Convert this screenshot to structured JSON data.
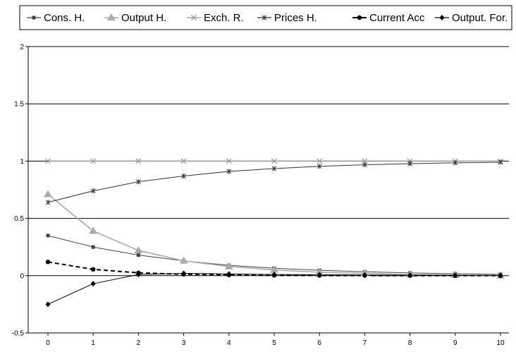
{
  "chart_data": {
    "type": "line",
    "title": "",
    "xlabel": "",
    "ylabel": "",
    "x": [
      0,
      1,
      2,
      3,
      4,
      5,
      6,
      7,
      8,
      9,
      10
    ],
    "xticks": [
      "0",
      "1",
      "2",
      "3",
      "4",
      "5",
      "6",
      "7",
      "8",
      "9",
      "10"
    ],
    "yticks": [
      "-0.5",
      "0",
      "0.5",
      "1",
      "1.5",
      "2"
    ],
    "ylim": [
      -0.5,
      2
    ],
    "grid": "horizontal",
    "legend_position": "top",
    "series": [
      {
        "name": "Cons. H.",
        "color": "#444444",
        "marker": "square",
        "dash": "solid",
        "values": [
          0.35,
          0.25,
          0.18,
          0.13,
          0.09,
          0.065,
          0.047,
          0.034,
          0.024,
          0.017,
          0.012
        ]
      },
      {
        "name": "Output H.",
        "color": "#aaaaaa",
        "marker": "triangle",
        "dash": "solid",
        "values": [
          0.71,
          0.39,
          0.22,
          0.13,
          0.08,
          0.05,
          0.03,
          0.02,
          0.01,
          0.005,
          0.0
        ]
      },
      {
        "name": "Exch. R.",
        "color": "#999999",
        "marker": "x",
        "dash": "solid",
        "values": [
          1,
          1,
          1,
          1,
          1,
          1,
          1,
          1,
          1,
          1,
          1
        ]
      },
      {
        "name": "Prices H.",
        "color": "#333333",
        "marker": "star",
        "dash": "solid",
        "values": [
          0.64,
          0.74,
          0.82,
          0.87,
          0.91,
          0.935,
          0.955,
          0.968,
          0.978,
          0.985,
          0.99
        ]
      },
      {
        "name": "Current Acc",
        "color": "#000000",
        "marker": "circle",
        "dash": "dashed",
        "values": [
          0.12,
          0.055,
          0.025,
          0.012,
          0.006,
          0.003,
          0.0015,
          0.0008,
          0.0004,
          0.0002,
          0.0001
        ]
      },
      {
        "name": "Output. For.",
        "color": "#000000",
        "marker": "diamond",
        "dash": "solid",
        "values": [
          -0.25,
          -0.07,
          0.01,
          0.02,
          0.015,
          0.01,
          0.008,
          0.006,
          0.004,
          0.003,
          0.002
        ]
      }
    ]
  }
}
